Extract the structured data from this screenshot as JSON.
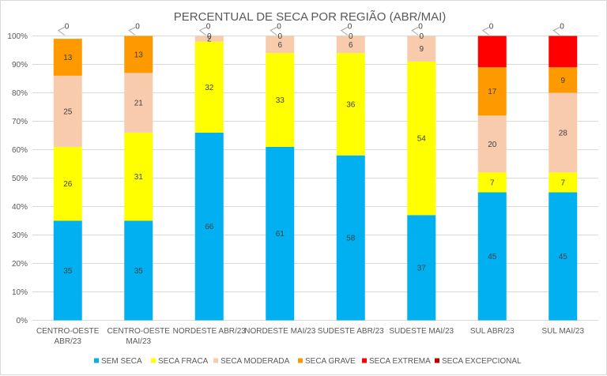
{
  "chart_data": {
    "type": "bar",
    "stacked": true,
    "title": "PERCENTUAL DE SECA POR REGIÃO (ABR/MAI)",
    "xlabel": "",
    "ylabel": "",
    "ylim": [
      0,
      100
    ],
    "y_ticks": [
      "0%",
      "10%",
      "20%",
      "30%",
      "40%",
      "50%",
      "60%",
      "70%",
      "80%",
      "90%",
      "100%"
    ],
    "grid": true,
    "legend_position": "bottom",
    "categories": [
      [
        "CENTRO-OESTE",
        "ABR/23"
      ],
      [
        "CENTRO-OESTE",
        "MAI/23"
      ],
      [
        "NORDESTE ABR/23"
      ],
      [
        "NORDESTE MAI/23"
      ],
      [
        "SUDESTE ABR/23"
      ],
      [
        "SUDESTE MAI/23"
      ],
      [
        "SUL ABR/23"
      ],
      [
        "SUL MAI/23"
      ]
    ],
    "series": [
      {
        "name": "SEM SECA",
        "color": "#00b0f0",
        "values": [
          35,
          35,
          66,
          61,
          58,
          37,
          45,
          45
        ]
      },
      {
        "name": "SECA FRACA",
        "color": "#ffff00",
        "values": [
          26,
          31,
          32,
          33,
          36,
          54,
          7,
          7
        ]
      },
      {
        "name": "SECA MODERADA",
        "color": "#f8cbad",
        "values": [
          25,
          21,
          2,
          6,
          6,
          9,
          20,
          28
        ]
      },
      {
        "name": "SECA GRAVE",
        "color": "#ff9900",
        "values": [
          13,
          13,
          0,
          0,
          0,
          0,
          17,
          9
        ]
      },
      {
        "name": "SECA EXTREMA",
        "color": "#ff0000",
        "values": [
          0,
          0,
          0,
          0,
          0,
          0,
          11,
          11
        ]
      },
      {
        "name": "SECA EXCEPCIONAL",
        "color": "#c00000",
        "values": [
          0,
          0,
          0,
          0,
          0,
          0,
          0,
          0
        ]
      }
    ]
  }
}
